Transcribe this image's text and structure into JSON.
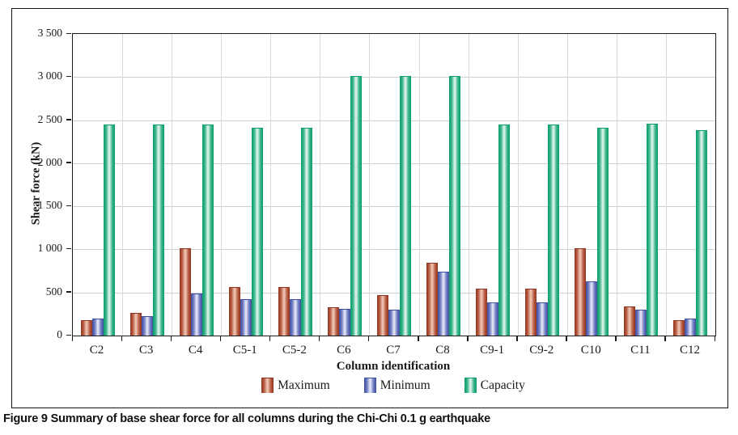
{
  "figure": {
    "caption_label": "Figure 9",
    "caption_text": " Summary of base shear force for all columns during the Chi-Chi 0.1 g earthquake"
  },
  "chart_data": {
    "type": "bar",
    "title": "",
    "xlabel": "Column identification",
    "ylabel": "Shear force (kN)",
    "ylim": [
      0,
      3500
    ],
    "ytick_step": 500,
    "ytick_labels": [
      "0",
      "500",
      "1 000",
      "1 500",
      "2 000",
      "2 500",
      "3 000",
      "3 500"
    ],
    "grid": true,
    "legend_position": "bottom",
    "categories": [
      "C2",
      "C3",
      "C4",
      "C5-1",
      "C5-2",
      "C6",
      "C7",
      "C8",
      "C9-1",
      "C9-2",
      "C10",
      "C11",
      "C12"
    ],
    "series": [
      {
        "name": "Maximum",
        "color": "#a03a24",
        "values": [
          170,
          255,
          1000,
          555,
          555,
          320,
          460,
          835,
          535,
          535,
          1000,
          330,
          170
        ]
      },
      {
        "name": "Minimum",
        "color": "#4a59a8",
        "values": [
          190,
          215,
          480,
          410,
          410,
          300,
          290,
          730,
          380,
          375,
          615,
          290,
          185
        ]
      },
      {
        "name": "Capacity",
        "color": "#0fa273",
        "values": [
          2440,
          2440,
          2440,
          2400,
          2400,
          3000,
          3000,
          3000,
          2440,
          2440,
          2400,
          2450,
          2370
        ]
      }
    ]
  }
}
